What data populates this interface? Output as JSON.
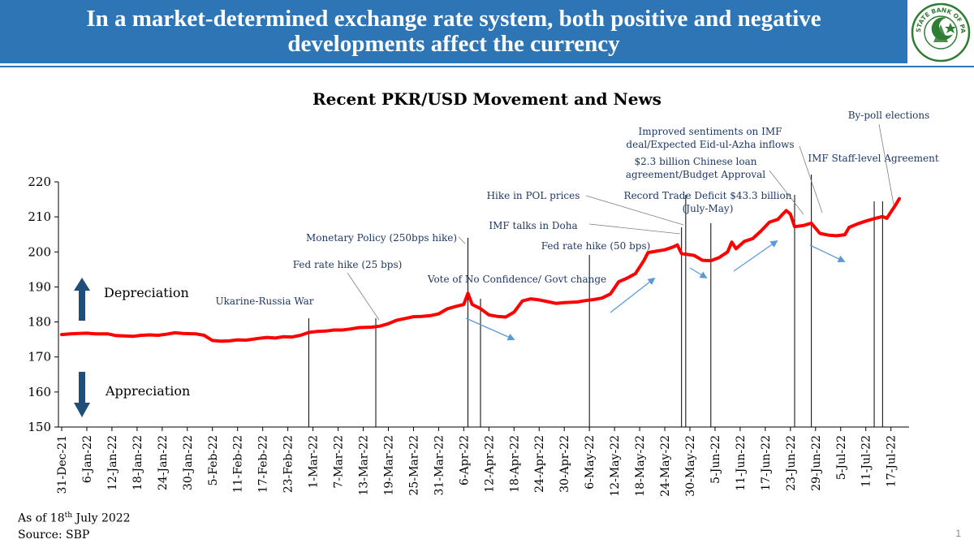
{
  "header": {
    "title_line1": "In a market-determined exchange rate system, both positive and negative",
    "title_line2": "developments affect the currency",
    "logo_text": "STATE BANK OF PAKISTAN"
  },
  "footer": {
    "asof_prefix": "As of 18",
    "asof_sup": "th",
    "asof_suffix": " July 2022",
    "source": "Source: SBP",
    "page_number": "1"
  },
  "colors": {
    "banner": "#2e75b6",
    "series": "#ff0000",
    "arrow_dark": "#1f4e79",
    "trend_arrow": "#5b9bd5",
    "annotation_text": "#1f3864"
  },
  "legend_labels": {
    "depreciation": "Depreciation",
    "appreciation": "Appreciation"
  },
  "chart_data": {
    "type": "line",
    "title": "Recent PKR/USD Movement and News",
    "xlabel": "",
    "ylabel": "",
    "ylim": [
      150,
      220
    ],
    "yticks": [
      150,
      160,
      170,
      180,
      190,
      200,
      210,
      220
    ],
    "x_start": "2021-12-31",
    "xtick_labels": [
      "31-Dec-21",
      "6-Jan-22",
      "12-Jan-22",
      "18-Jan-22",
      "24-Jan-22",
      "30-Jan-22",
      "5-Feb-22",
      "11-Feb-22",
      "17-Feb-22",
      "23-Feb-22",
      "1-Mar-22",
      "7-Mar-22",
      "13-Mar-22",
      "19-Mar-22",
      "25-Mar-22",
      "31-Mar-22",
      "6-Apr-22",
      "12-Apr-22",
      "18-Apr-22",
      "24-Apr-22",
      "30-Apr-22",
      "6-May-22",
      "12-May-22",
      "18-May-22",
      "24-May-22",
      "30-May-22",
      "5-Jun-22",
      "11-Jun-22",
      "17-Jun-22",
      "23-Jun-22",
      "29-Jun-22",
      "5-Jul-22",
      "11-Jul-22",
      "17-Jul-22"
    ],
    "series": [
      {
        "name": "",
        "points": [
          [
            "2021-12-31",
            176.4
          ],
          [
            "2022-01-02",
            176.6
          ],
          [
            "2022-01-04",
            176.7
          ],
          [
            "2022-01-06",
            176.8
          ],
          [
            "2022-01-08",
            176.6
          ],
          [
            "2022-01-11",
            176.6
          ],
          [
            "2022-01-13",
            176.1
          ],
          [
            "2022-01-15",
            176.0
          ],
          [
            "2022-01-17",
            175.9
          ],
          [
            "2022-01-19",
            176.2
          ],
          [
            "2022-01-21",
            176.3
          ],
          [
            "2022-01-23",
            176.2
          ],
          [
            "2022-01-25",
            176.5
          ],
          [
            "2022-01-27",
            176.9
          ],
          [
            "2022-01-29",
            176.7
          ],
          [
            "2022-02-01",
            176.6
          ],
          [
            "2022-02-03",
            176.2
          ],
          [
            "2022-02-05",
            174.7
          ],
          [
            "2022-02-07",
            174.5
          ],
          [
            "2022-02-09",
            174.6
          ],
          [
            "2022-02-11",
            174.9
          ],
          [
            "2022-02-13",
            174.8
          ],
          [
            "2022-02-16",
            175.3
          ],
          [
            "2022-02-18",
            175.6
          ],
          [
            "2022-02-20",
            175.4
          ],
          [
            "2022-02-22",
            175.8
          ],
          [
            "2022-02-24",
            175.7
          ],
          [
            "2022-02-26",
            176.2
          ],
          [
            "2022-02-28",
            177.0
          ],
          [
            "2022-03-02",
            177.3
          ],
          [
            "2022-03-04",
            177.4
          ],
          [
            "2022-03-06",
            177.7
          ],
          [
            "2022-03-08",
            177.7
          ],
          [
            "2022-03-10",
            178.0
          ],
          [
            "2022-03-12",
            178.4
          ],
          [
            "2022-03-15",
            178.5
          ],
          [
            "2022-03-17",
            178.8
          ],
          [
            "2022-03-19",
            179.5
          ],
          [
            "2022-03-21",
            180.5
          ],
          [
            "2022-03-23",
            181.0
          ],
          [
            "2022-03-25",
            181.5
          ],
          [
            "2022-03-27",
            181.6
          ],
          [
            "2022-03-29",
            181.8
          ],
          [
            "2022-03-31",
            182.3
          ],
          [
            "2022-04-02",
            183.7
          ],
          [
            "2022-04-04",
            184.4
          ],
          [
            "2022-04-06",
            185.0
          ],
          [
            "2022-04-07",
            188.2
          ],
          [
            "2022-04-08",
            185.0
          ],
          [
            "2022-04-10",
            183.8
          ],
          [
            "2022-04-12",
            182.0
          ],
          [
            "2022-04-14",
            181.6
          ],
          [
            "2022-04-16",
            181.4
          ],
          [
            "2022-04-18",
            182.8
          ],
          [
            "2022-04-20",
            186.0
          ],
          [
            "2022-04-22",
            186.6
          ],
          [
            "2022-04-24",
            186.3
          ],
          [
            "2022-04-26",
            185.8
          ],
          [
            "2022-04-28",
            185.3
          ],
          [
            "2022-04-30",
            185.5
          ],
          [
            "2022-05-03",
            185.7
          ],
          [
            "2022-05-05",
            186.1
          ],
          [
            "2022-05-07",
            186.4
          ],
          [
            "2022-05-09",
            186.8
          ],
          [
            "2022-05-11",
            188.0
          ],
          [
            "2022-05-13",
            191.5
          ],
          [
            "2022-05-15",
            192.5
          ],
          [
            "2022-05-17",
            193.8
          ],
          [
            "2022-05-19",
            197.5
          ],
          [
            "2022-05-20",
            199.8
          ],
          [
            "2022-05-22",
            200.2
          ],
          [
            "2022-05-24",
            200.6
          ],
          [
            "2022-05-26",
            201.4
          ],
          [
            "2022-05-27",
            202.0
          ],
          [
            "2022-05-28",
            199.5
          ],
          [
            "2022-05-31",
            199.0
          ],
          [
            "2022-06-02",
            197.6
          ],
          [
            "2022-06-04",
            197.5
          ],
          [
            "2022-06-06",
            198.4
          ],
          [
            "2022-06-08",
            200.0
          ],
          [
            "2022-06-09",
            202.8
          ],
          [
            "2022-06-10",
            200.9
          ],
          [
            "2022-06-12",
            203.0
          ],
          [
            "2022-06-14",
            203.8
          ],
          [
            "2022-06-16",
            206.0
          ],
          [
            "2022-06-18",
            208.5
          ],
          [
            "2022-06-20",
            209.3
          ],
          [
            "2022-06-21",
            210.6
          ],
          [
            "2022-06-22",
            211.8
          ],
          [
            "2022-06-23",
            210.8
          ],
          [
            "2022-06-24",
            207.2
          ],
          [
            "2022-06-26",
            207.5
          ],
          [
            "2022-06-28",
            208.2
          ],
          [
            "2022-06-30",
            205.3
          ],
          [
            "2022-07-02",
            204.8
          ],
          [
            "2022-07-04",
            204.6
          ],
          [
            "2022-07-06",
            204.9
          ],
          [
            "2022-07-07",
            207.0
          ],
          [
            "2022-07-09",
            208.0
          ],
          [
            "2022-07-11",
            208.8
          ],
          [
            "2022-07-13",
            209.5
          ],
          [
            "2022-07-15",
            210.1
          ],
          [
            "2022-07-16",
            209.6
          ],
          [
            "2022-07-18",
            213.2
          ],
          [
            "2022-07-19",
            215.2
          ]
        ]
      }
    ],
    "events": [
      {
        "date": "2022-02-28",
        "label": "Ukarine-Russia War"
      },
      {
        "date": "2022-03-16",
        "label": "Fed rate hike (25 bps)"
      },
      {
        "date": "2022-04-07",
        "label": "Monetary Policy (250bps hike)"
      },
      {
        "date": "2022-04-10",
        "label": "Vote of No Confidence/ Govt change"
      },
      {
        "date": "2022-05-06",
        "label": "Fed rate hike (50 bps)"
      },
      {
        "date": "2022-05-28",
        "label": "IMF talks in Doha"
      },
      {
        "date": "2022-05-29",
        "label": "Hike in POL prices"
      },
      {
        "date": "2022-06-04",
        "label": "Record Trade Deficit $43.3 billion (July-May)"
      },
      {
        "date": "2022-06-24",
        "label": "$2.3 billion Chinese loan agreement/Budget Approval"
      },
      {
        "date": "2022-06-28",
        "label": "Improved sentiments on IMF deal/Expected Eid-ul-Azha inflows"
      },
      {
        "date": "2022-07-13",
        "label": "IMF Staff-level Agreement"
      },
      {
        "date": "2022-07-15",
        "label": "By-poll elections"
      }
    ],
    "annotations": [
      {
        "id": "ukraine",
        "lines": [
          "Ukarine-Russia War"
        ]
      },
      {
        "id": "fed25",
        "lines": [
          "Fed rate hike (25 bps)"
        ]
      },
      {
        "id": "mp250",
        "lines": [
          "Monetary Policy (250bps hike)"
        ]
      },
      {
        "id": "vonc",
        "lines": [
          "Vote of No Confidence/ Govt change"
        ]
      },
      {
        "id": "fed50",
        "lines": [
          "Fed rate hike (50 bps)"
        ]
      },
      {
        "id": "doha",
        "lines": [
          "IMF talks in Doha"
        ]
      },
      {
        "id": "pol",
        "lines": [
          "Hike in POL prices"
        ]
      },
      {
        "id": "trade",
        "lines": [
          "Record Trade Deficit $43.3 billion",
          "(July-May)"
        ]
      },
      {
        "id": "china",
        "lines": [
          "$2.3 billion Chinese  loan",
          "agreement/Budget  Approval"
        ]
      },
      {
        "id": "imfsent",
        "lines": [
          "Improved sentiments on IMF",
          "deal/Expected Eid-ul-Azha inflows"
        ]
      },
      {
        "id": "imfsla",
        "lines": [
          "IMF Staff-level Agreement"
        ]
      },
      {
        "id": "bypoll",
        "lines": [
          "By-poll elections"
        ]
      }
    ],
    "grid": false,
    "legend": "none"
  }
}
